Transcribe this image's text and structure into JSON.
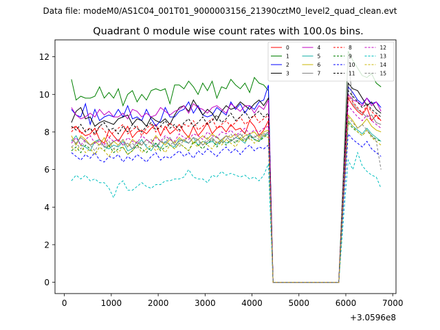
{
  "suptitle": "Data file: modeM0/AS1C04_001T01_9000003156_21390cztM0_level2_quad_clean.evt",
  "chart_data": {
    "type": "line",
    "title": "Quadrant 0 module wise count rates with 100.0s bins.",
    "xlabel": "",
    "ylabel": "",
    "x_offset_label": "+3.0596e8",
    "xlim": [
      -200,
      7070
    ],
    "ylim": [
      -0.6,
      12.9
    ],
    "xticks": [
      0,
      1000,
      2000,
      3000,
      4000,
      5000,
      6000,
      7000
    ],
    "yticks": [
      0,
      2,
      4,
      6,
      8,
      10,
      12
    ],
    "grid": false,
    "legend_position": "top-right",
    "legend_columns": 4,
    "x": [
      150,
      250,
      350,
      450,
      550,
      650,
      750,
      850,
      950,
      1050,
      1150,
      1250,
      1350,
      1450,
      1550,
      1650,
      1750,
      1850,
      1950,
      2050,
      2150,
      2250,
      2350,
      2450,
      2550,
      2650,
      2750,
      2850,
      2950,
      3050,
      3150,
      3250,
      3350,
      3450,
      3550,
      3650,
      3750,
      3850,
      3950,
      4050,
      4150,
      4250,
      4350,
      4400,
      4450,
      5850,
      5950,
      6050,
      6150,
      6250,
      6350,
      6450,
      6550,
      6650,
      6750
    ],
    "series": [
      {
        "name": "0",
        "color": "#ff0000",
        "dash": "solid",
        "values": [
          8.2,
          8.3,
          8.0,
          7.8,
          7.9,
          8.2,
          7.6,
          7.4,
          8.1,
          7.8,
          7.5,
          7.9,
          8.3,
          7.7,
          8.0,
          8.1,
          7.9,
          8.2,
          8.4,
          7.8,
          8.3,
          7.9,
          8.1,
          8.4,
          8.0,
          7.7,
          8.3,
          7.8,
          8.1,
          8.5,
          7.9,
          8.2,
          8.3,
          8.0,
          8.4,
          8.1,
          8.2,
          7.9,
          8.6,
          8.3,
          7.8,
          8.1,
          8.6,
          4.0,
          0.0,
          0.0,
          5.0,
          9.8,
          9.4,
          9.1,
          8.9,
          9.3,
          8.6,
          8.9,
          8.6
        ]
      },
      {
        "name": "1",
        "color": "#008000",
        "dash": "solid",
        "values": [
          10.8,
          9.7,
          9.9,
          9.8,
          9.8,
          9.9,
          10.4,
          9.8,
          10.1,
          9.8,
          10.3,
          9.4,
          10.0,
          10.2,
          9.6,
          10.0,
          9.7,
          10.2,
          10.3,
          10.2,
          10.3,
          9.5,
          10.5,
          10.5,
          10.3,
          10.7,
          10.4,
          10.0,
          10.6,
          10.2,
          10.7,
          9.8,
          10.4,
          10.3,
          10.8,
          10.5,
          10.3,
          10.6,
          10.1,
          10.9,
          10.6,
          10.5,
          10.2,
          4.9,
          0.0,
          0.0,
          6.0,
          12.3,
          11.8,
          11.4,
          11.0,
          10.9,
          11.1,
          10.6,
          10.4
        ]
      },
      {
        "name": "2",
        "color": "#0000ff",
        "dash": "solid",
        "values": [
          9.2,
          8.9,
          8.8,
          9.5,
          8.4,
          9.2,
          8.6,
          8.8,
          8.9,
          8.8,
          9.2,
          8.8,
          9.4,
          8.7,
          8.8,
          8.6,
          9.2,
          8.7,
          8.3,
          8.6,
          9.3,
          8.8,
          8.8,
          9.1,
          9.2,
          9.6,
          9.0,
          9.4,
          8.9,
          8.8,
          8.9,
          9.3,
          9.1,
          8.9,
          9.6,
          9.2,
          9.5,
          9.0,
          9.4,
          9.2,
          9.6,
          9.7,
          10.5,
          5.0,
          0.0,
          0.0,
          5.4,
          10.4,
          10.1,
          9.7,
          9.5,
          9.8,
          9.5,
          9.6,
          9.3
        ]
      },
      {
        "name": "3",
        "color": "#000000",
        "dash": "solid",
        "values": [
          8.5,
          9.1,
          9.3,
          8.7,
          8.8,
          8.3,
          8.5,
          8.6,
          8.5,
          8.4,
          8.7,
          8.8,
          8.9,
          8.4,
          8.7,
          8.6,
          8.3,
          8.8,
          8.6,
          8.5,
          8.7,
          8.4,
          8.9,
          9.3,
          9.4,
          9.1,
          9.7,
          9.3,
          8.9,
          9.2,
          9.0,
          8.6,
          9.1,
          9.4,
          9.2,
          9.3,
          9.6,
          9.4,
          9.2,
          9.5,
          9.7,
          9.4,
          9.8,
          4.9,
          0.0,
          0.0,
          5.6,
          10.6,
          10.3,
          10.2,
          9.8,
          9.4,
          9.6,
          9.2,
          9.0
        ]
      },
      {
        "name": "4",
        "color": "#c000c0",
        "dash": "solid",
        "values": [
          9.3,
          8.9,
          8.7,
          8.8,
          9.0,
          8.8,
          9.2,
          8.9,
          9.1,
          8.8,
          8.8,
          9.0,
          8.7,
          9.2,
          9.1,
          8.8,
          9.0,
          8.8,
          8.9,
          9.3,
          9.1,
          8.9,
          9.1,
          9.2,
          9.4,
          9.0,
          9.5,
          9.3,
          9.2,
          9.0,
          9.3,
          9.4,
          9.2,
          9.0,
          9.5,
          9.3,
          9.1,
          9.4,
          9.4,
          9.0,
          9.4,
          9.2,
          9.7,
          4.8,
          0.0,
          0.0,
          5.2,
          10.0,
          9.7,
          9.6,
          9.4,
          9.8,
          9.4,
          9.6,
          9.1
        ]
      },
      {
        "name": "5",
        "color": "#20b2aa",
        "dash": "solid",
        "values": [
          7.5,
          7.8,
          7.3,
          7.2,
          7.0,
          7.5,
          7.6,
          7.2,
          7.1,
          7.3,
          7.2,
          7.5,
          7.0,
          7.1,
          7.3,
          7.6,
          7.2,
          7.0,
          7.4,
          7.1,
          7.5,
          7.3,
          7.2,
          7.6,
          7.5,
          7.4,
          7.7,
          7.3,
          7.5,
          7.4,
          7.5,
          7.3,
          7.6,
          7.4,
          7.5,
          7.7,
          7.6,
          7.4,
          7.9,
          7.6,
          7.5,
          7.8,
          7.9,
          3.9,
          0.0,
          0.0,
          4.5,
          8.6,
          8.3,
          8.1,
          7.9,
          8.2,
          7.9,
          7.7,
          7.5
        ]
      },
      {
        "name": "6",
        "color": "#c8b400",
        "dash": "solid",
        "values": [
          7.8,
          7.3,
          7.8,
          7.6,
          7.3,
          7.5,
          7.3,
          7.7,
          7.2,
          7.5,
          7.3,
          7.6,
          7.2,
          7.6,
          7.4,
          7.3,
          7.6,
          7.4,
          7.8,
          7.5,
          7.3,
          7.6,
          7.4,
          7.7,
          7.5,
          7.8,
          7.4,
          7.6,
          7.8,
          7.6,
          7.9,
          7.7,
          7.5,
          7.8,
          7.7,
          7.9,
          7.6,
          7.8,
          7.9,
          8.0,
          7.7,
          8.0,
          8.1,
          4.0,
          0.0,
          0.0,
          4.7,
          8.9,
          8.6,
          8.2,
          8.4,
          8.7,
          8.3,
          8.1,
          8.0
        ]
      },
      {
        "name": "7",
        "color": "#808080",
        "dash": "solid",
        "values": [
          7.6,
          7.4,
          7.7,
          7.5,
          7.3,
          7.4,
          7.6,
          7.2,
          7.3,
          7.5,
          7.6,
          7.3,
          7.4,
          7.1,
          7.5,
          7.3,
          7.6,
          7.4,
          7.2,
          7.5,
          7.4,
          7.7,
          7.3,
          7.5,
          7.6,
          7.4,
          7.7,
          7.6,
          7.3,
          7.5,
          7.7,
          7.4,
          7.6,
          7.8,
          7.5,
          7.7,
          7.9,
          7.6,
          7.8,
          7.7,
          7.9,
          7.8,
          8.0,
          4.0,
          0.0,
          0.0,
          6.0,
          12.0,
          9.5,
          9.2,
          9.0,
          8.8,
          8.9,
          8.5,
          8.4
        ]
      },
      {
        "name": "8",
        "color": "#ff0000",
        "dash": "dashed",
        "values": [
          8.0,
          8.3,
          7.9,
          8.1,
          8.2,
          7.8,
          8.3,
          8.1,
          7.7,
          8.0,
          8.2,
          8.4,
          7.9,
          8.1,
          8.3,
          7.8,
          8.2,
          8.4,
          8.0,
          8.3,
          8.1,
          8.5,
          8.2,
          8.0,
          8.4,
          8.3,
          8.6,
          8.1,
          8.3,
          8.5,
          8.7,
          8.2,
          8.4,
          8.6,
          8.3,
          8.5,
          8.8,
          8.4,
          8.6,
          8.9,
          8.5,
          8.7,
          8.9,
          4.3,
          0.0,
          0.0,
          5.1,
          9.9,
          9.6,
          9.3,
          9.0,
          9.4,
          9.1,
          8.8,
          8.6
        ]
      },
      {
        "name": "9",
        "color": "#008000",
        "dash": "dashed",
        "values": [
          7.0,
          7.2,
          6.9,
          7.3,
          7.1,
          6.8,
          7.2,
          7.0,
          7.3,
          6.9,
          7.1,
          7.2,
          6.8,
          7.0,
          7.3,
          7.1,
          6.9,
          7.2,
          7.4,
          7.0,
          7.2,
          7.3,
          7.1,
          7.4,
          7.2,
          7.0,
          7.5,
          7.3,
          7.1,
          7.4,
          7.6,
          7.2,
          7.5,
          7.3,
          7.6,
          7.4,
          7.7,
          7.5,
          7.8,
          7.6,
          7.5,
          7.7,
          7.9,
          3.8,
          0.0,
          0.0,
          4.4,
          8.5,
          8.2,
          8.0,
          7.8,
          8.1,
          7.8,
          7.6,
          7.5
        ]
      },
      {
        "name": "10",
        "color": "#0000ff",
        "dash": "dashed",
        "values": [
          6.9,
          6.7,
          6.5,
          6.8,
          6.6,
          6.9,
          6.5,
          6.4,
          6.7,
          6.6,
          6.8,
          6.4,
          6.7,
          6.5,
          6.8,
          6.6,
          6.4,
          6.7,
          6.9,
          6.5,
          6.7,
          6.6,
          6.8,
          7.0,
          6.7,
          6.9,
          6.6,
          7.0,
          6.8,
          7.1,
          6.9,
          6.7,
          7.0,
          7.2,
          6.9,
          7.1,
          6.8,
          7.1,
          7.3,
          7.0,
          7.2,
          7.1,
          7.3,
          3.5,
          0.0,
          0.0,
          4.1,
          7.9,
          7.6,
          7.4,
          7.2,
          7.5,
          7.1,
          6.9,
          6.7
        ]
      },
      {
        "name": "11",
        "color": "#000000",
        "dash": "dashed",
        "values": [
          8.3,
          8.1,
          8.4,
          8.0,
          8.2,
          7.9,
          8.3,
          8.5,
          8.1,
          8.2,
          7.9,
          8.3,
          8.0,
          8.4,
          8.2,
          8.0,
          8.3,
          8.5,
          8.1,
          8.3,
          8.6,
          8.2,
          8.4,
          8.1,
          8.5,
          8.7,
          8.3,
          8.5,
          8.8,
          8.4,
          8.6,
          8.9,
          8.5,
          8.7,
          9.0,
          8.6,
          8.8,
          9.1,
          8.7,
          8.9,
          9.1,
          8.8,
          9.0,
          4.4,
          0.0,
          0.0,
          5.3,
          10.2,
          9.9,
          9.6,
          9.3,
          9.5,
          9.2,
          9.0,
          8.8
        ]
      },
      {
        "name": "12",
        "color": "#c000c0",
        "dash": "dashed",
        "values": [
          7.4,
          7.7,
          7.3,
          7.6,
          7.8,
          7.4,
          7.5,
          7.3,
          7.7,
          7.5,
          7.6,
          7.3,
          7.7,
          7.5,
          7.4,
          7.8,
          7.6,
          7.4,
          7.7,
          7.5,
          7.8,
          7.6,
          7.5,
          7.9,
          7.7,
          7.6,
          7.9,
          7.8,
          7.6,
          8.0,
          7.8,
          7.7,
          8.0,
          7.9,
          8.1,
          7.8,
          8.0,
          8.2,
          7.9,
          8.1,
          8.0,
          8.2,
          8.3,
          4.1,
          0.0,
          0.0,
          4.9,
          9.4,
          9.1,
          8.8,
          8.6,
          8.9,
          8.6,
          8.4,
          8.2
        ]
      },
      {
        "name": "13",
        "color": "#00bfbf",
        "dash": "dashed",
        "values": [
          5.4,
          5.7,
          5.5,
          5.7,
          5.4,
          5.5,
          5.3,
          5.3,
          5.0,
          4.5,
          5.2,
          5.4,
          4.9,
          4.9,
          5.1,
          5.3,
          5.1,
          5.0,
          5.2,
          5.2,
          5.4,
          5.4,
          5.5,
          5.5,
          5.6,
          6.0,
          5.6,
          5.5,
          5.5,
          5.3,
          5.7,
          5.6,
          5.9,
          5.7,
          5.8,
          5.7,
          5.6,
          5.7,
          5.5,
          5.6,
          5.4,
          5.7,
          6.3,
          3.0,
          0.0,
          0.0,
          3.4,
          6.5,
          6.0,
          6.9,
          6.2,
          5.9,
          5.7,
          5.6,
          5.0
        ]
      },
      {
        "name": "14",
        "color": "#c8b400",
        "dash": "dashed",
        "values": [
          7.2,
          7.0,
          7.3,
          6.9,
          7.1,
          6.8,
          7.2,
          7.0,
          6.7,
          7.1,
          6.9,
          7.2,
          6.8,
          7.0,
          7.3,
          6.9,
          7.1,
          7.3,
          7.0,
          7.2,
          6.9,
          7.3,
          7.1,
          7.4,
          7.2,
          7.0,
          7.4,
          7.2,
          7.5,
          7.3,
          7.1,
          7.5,
          7.3,
          7.6,
          7.4,
          7.2,
          7.6,
          7.5,
          7.7,
          7.4,
          7.6,
          7.8,
          7.7,
          3.8,
          0.0,
          0.0,
          4.5,
          8.6,
          8.3,
          8.0,
          7.8,
          8.1,
          7.7,
          7.5,
          7.3
        ]
      },
      {
        "name": "15",
        "color": "#808080",
        "dash": "dashed",
        "values": [
          7.2,
          7.4,
          7.1,
          7.5,
          7.3,
          7.0,
          7.4,
          7.2,
          7.5,
          7.1,
          7.3,
          7.6,
          7.2,
          7.4,
          7.1,
          7.5,
          7.3,
          7.6,
          7.2,
          7.4,
          7.7,
          7.3,
          7.5,
          7.2,
          7.6,
          7.4,
          7.7,
          7.5,
          7.3,
          7.7,
          7.5,
          7.8,
          7.4,
          7.6,
          7.9,
          7.5,
          7.7,
          8.0,
          7.6,
          7.8,
          7.6,
          7.9,
          8.0,
          4.0,
          0.0,
          0.0,
          4.6,
          8.8,
          8.5,
          8.2,
          8.4,
          8.1,
          7.8,
          7.5,
          6.0
        ]
      }
    ]
  }
}
